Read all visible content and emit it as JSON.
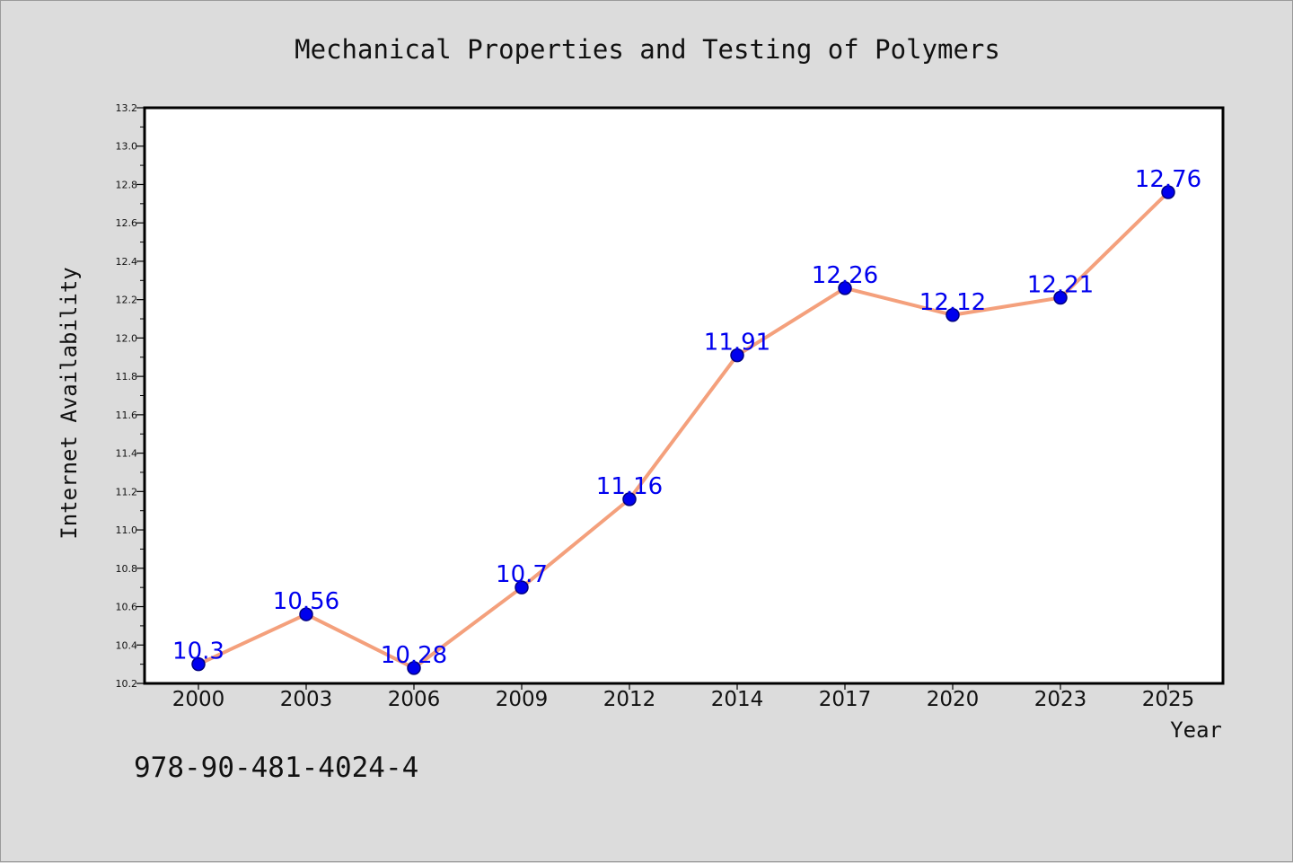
{
  "colors": {
    "background": "#dcdcdc",
    "plot_background": "#ffffff",
    "line": "#f4a07c",
    "marker_fill": "#0000ee",
    "marker_stroke": "#000080",
    "data_label": "#0000ee"
  },
  "footer": {
    "isbn": "978-90-481-4024-4"
  },
  "chart_data": {
    "type": "line",
    "title": "Mechanical Properties and Testing of Polymers",
    "xlabel": "Year",
    "ylabel": "Internet Availability",
    "categories": [
      "2000",
      "2003",
      "2006",
      "2009",
      "2012",
      "2014",
      "2017",
      "2020",
      "2023",
      "2025"
    ],
    "series": [
      {
        "values": [
          10.3,
          10.56,
          10.28,
          10.7,
          11.16,
          11.91,
          12.26,
          12.12,
          12.21,
          12.76
        ],
        "data_labels": [
          "10.3",
          "10.56",
          "10.28",
          "10.7",
          "11.16",
          "11.91",
          "12.26",
          "12.12",
          "12.21",
          "12.76"
        ]
      }
    ],
    "ylim": [
      10.2,
      13.2
    ],
    "yticks": [
      "10.2",
      "10.4",
      "10.6",
      "10.8",
      "11.0",
      "11.2",
      "11.4",
      "11.6",
      "11.8",
      "12.0",
      "12.2",
      "12.4",
      "12.6",
      "12.8",
      "13.0",
      "13.2"
    ],
    "grid": false,
    "legend": "none"
  }
}
